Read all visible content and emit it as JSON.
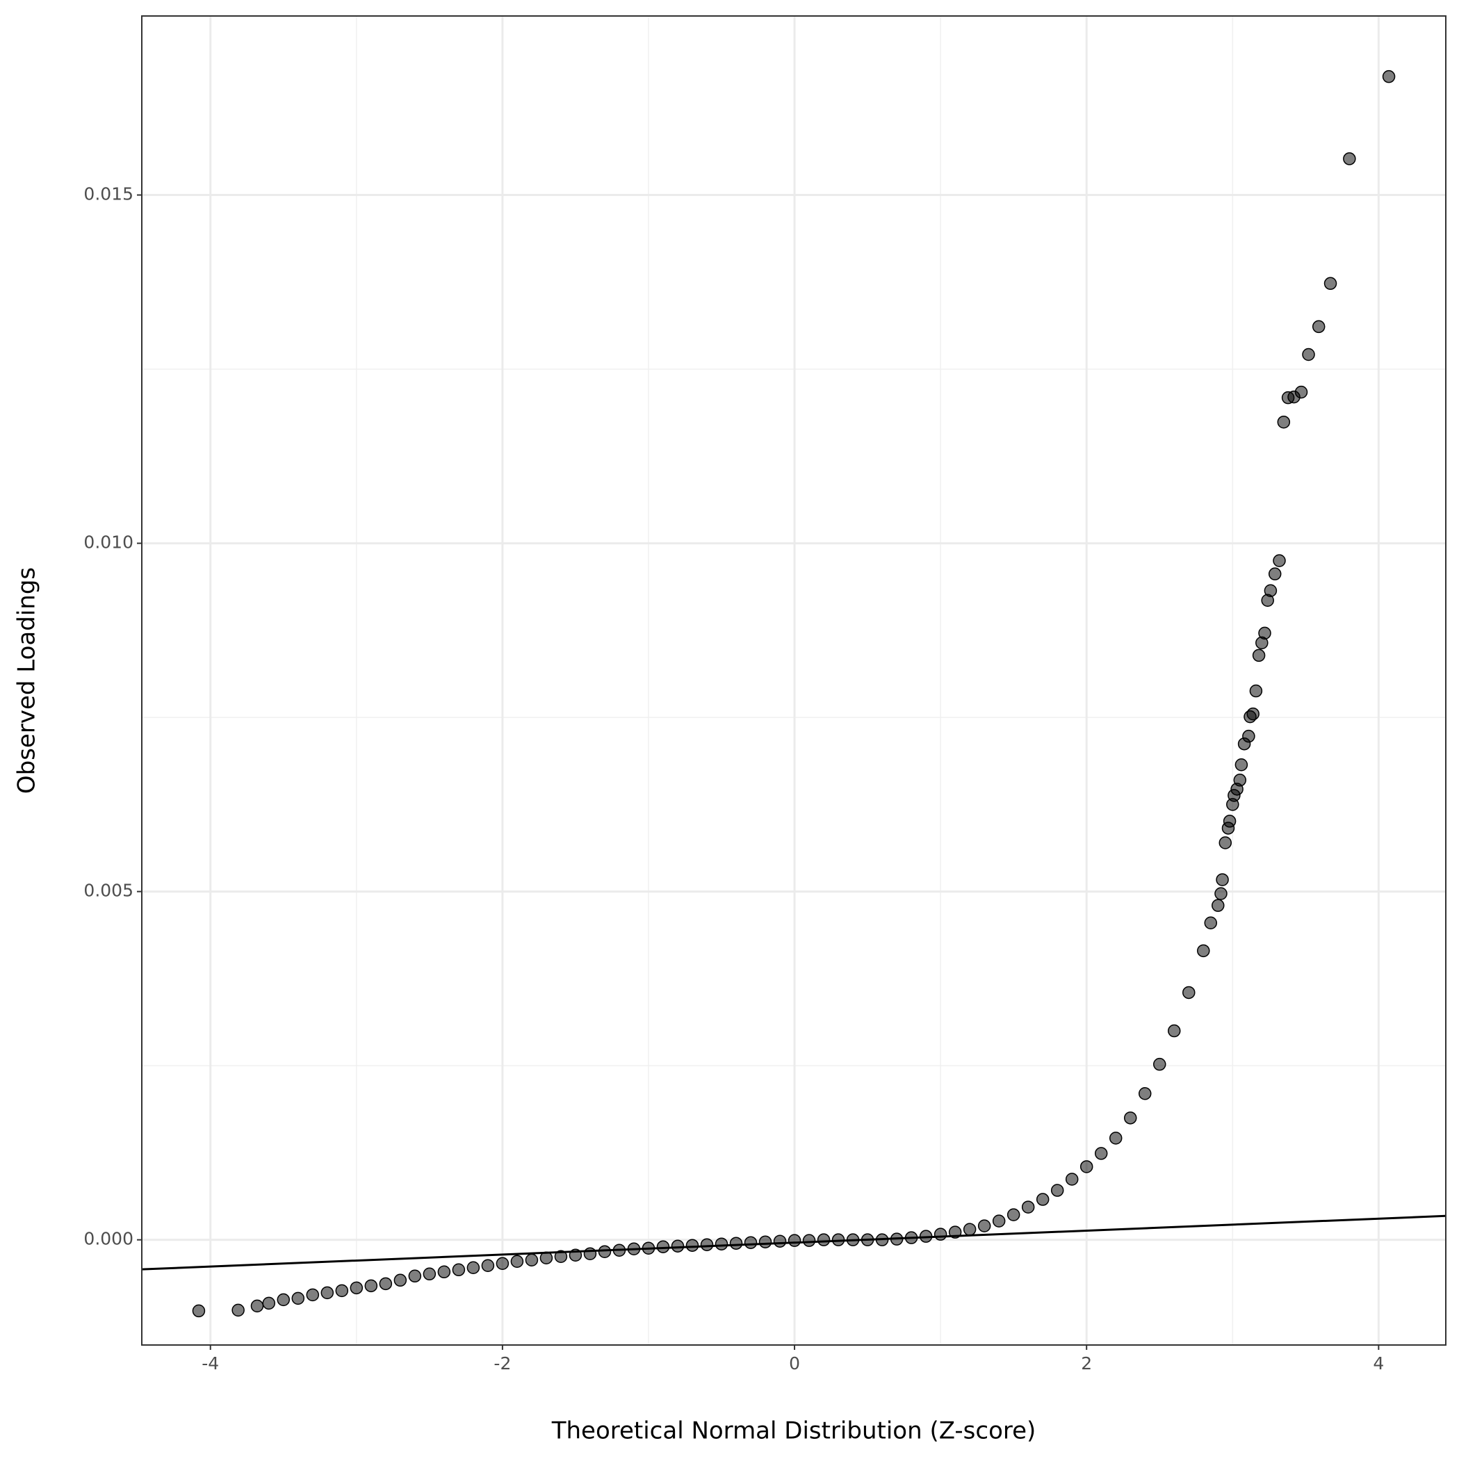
{
  "chart_data": {
    "type": "scatter",
    "x_label": "Theoretical Normal Distribution (Z-score)",
    "y_label": "Observed Loadings",
    "x": [
      -4.08,
      -3.81,
      -3.68,
      -3.6,
      -3.5,
      -3.4,
      -3.3,
      -3.2,
      -3.1,
      -3.0,
      -2.9,
      -2.8,
      -2.7,
      -2.6,
      -2.5,
      -2.4,
      -2.3,
      -2.2,
      -2.1,
      -2.0,
      -1.9,
      -1.8,
      -1.7,
      -1.6,
      -1.5,
      -1.4,
      -1.3,
      -1.2,
      -1.1,
      -1.0,
      -0.9,
      -0.8,
      -0.7,
      -0.6,
      -0.5,
      -0.4,
      -0.3,
      -0.2,
      -0.1,
      0,
      0.1,
      0.2,
      0.3,
      0.4,
      0.5,
      0.6,
      0.7,
      0.8,
      0.9,
      1.0,
      1.1,
      1.2,
      1.3,
      1.4,
      1.5,
      1.6,
      1.7,
      1.8,
      1.9,
      2.0,
      2.1,
      2.2,
      2.3,
      2.4,
      2.5,
      2.6,
      2.7,
      2.8,
      2.85,
      2.9,
      2.92,
      2.93,
      2.95,
      2.97,
      2.98,
      3.0,
      3.01,
      3.03,
      3.05,
      3.06,
      3.08,
      3.11,
      3.12,
      3.14,
      3.16,
      3.18,
      3.2,
      3.22,
      3.24,
      3.26,
      3.29,
      3.32,
      3.35,
      3.38,
      3.42,
      3.47,
      3.52,
      3.59,
      3.67,
      3.8,
      4.07
    ],
    "values": [
      -0.00102,
      -0.00101,
      -0.00095,
      -0.00091,
      -0.00086,
      -0.00084,
      -0.00079,
      -0.00076,
      -0.00073,
      -0.00069,
      -0.00066,
      -0.00063,
      -0.00058,
      -0.00052,
      -0.00049,
      -0.00046,
      -0.00043,
      -0.0004,
      -0.00037,
      -0.00034,
      -0.00031,
      -0.00029,
      -0.00026,
      -0.00024,
      -0.00022,
      -0.0002,
      -0.00017,
      -0.00015,
      -0.00013,
      -0.00012,
      -0.0001,
      -9e-05,
      -8e-05,
      -7e-05,
      -6e-05,
      -5e-05,
      -4e-05,
      -3e-05,
      -2e-05,
      -1e-05,
      -1e-05,
      0,
      0,
      0,
      0,
      0,
      1e-05,
      3e-05,
      5e-05,
      8e-05,
      0.00011,
      0.00015,
      0.0002,
      0.00027,
      0.00036,
      0.00047,
      0.00058,
      0.00071,
      0.00087,
      0.00105,
      0.00124,
      0.00146,
      0.00175,
      0.0021,
      0.00252,
      0.003,
      0.00355,
      0.00415,
      0.00455,
      0.0048,
      0.00497,
      0.00517,
      0.0057,
      0.00591,
      0.00601,
      0.00625,
      0.00638,
      0.00647,
      0.0066,
      0.00682,
      0.00712,
      0.00723,
      0.00751,
      0.00755,
      0.00788,
      0.00839,
      0.00857,
      0.00871,
      0.00918,
      0.00932,
      0.00956,
      0.00975,
      0.01174,
      0.01209,
      0.0121,
      0.01217,
      0.01271,
      0.01311,
      0.01373,
      0.01552,
      0.0167
    ],
    "color": "#000000",
    "opacity": 0.5,
    "reference_line": {
      "slope": 8.59e-05,
      "intercept": -4e-05,
      "color": "#000000"
    },
    "xlim": [
      -4.47,
      4.46
    ],
    "ylim": [
      -0.00151,
      0.01757
    ],
    "xticks": [
      -4,
      -2,
      0,
      2,
      4
    ],
    "yticks": [
      {
        "value": 0,
        "label": "0.000"
      },
      0.005,
      {
        "value": 0.01,
        "label": "0.010"
      },
      0.015
    ],
    "x_minor_grid": [
      -3,
      -1,
      1,
      3
    ],
    "y_minor_grid": [
      0.0025,
      0.0075,
      0.0125
    ],
    "grid": true
  }
}
